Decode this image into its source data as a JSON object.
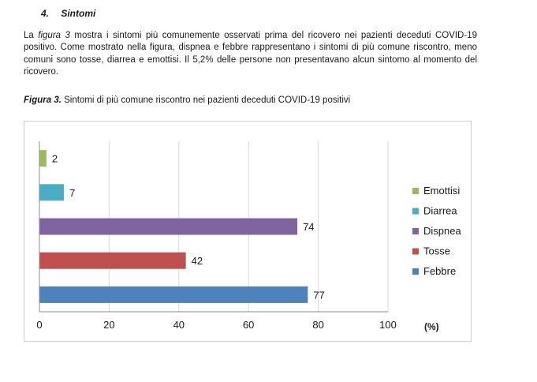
{
  "section": {
    "number": "4.",
    "title": "Sintomi"
  },
  "paragraph": {
    "part1": "La ",
    "figure_ref": "figura 3",
    "part2": " mostra i sintomi più comunemente osservati prima del ricovero nei pazienti deceduti COVID-19 positivo. Come mostrato nella figura, dispnea e febbre rappresentano i sintomi di più comune riscontro, meno comuni sono tosse, diarrea e emottisi. Il 5,2% delle persone non presentavano alcun sintomo al momento del ricovero."
  },
  "caption": {
    "label": "Figura 3.",
    "text": " Sintomi di più comune riscontro nei pazienti deceduti COVID-19 positivi"
  },
  "chart_data": {
    "type": "bar",
    "orientation": "horizontal",
    "categories": [
      "Emottisi",
      "Diarrea",
      "Dispnea",
      "Tosse",
      "Febbre"
    ],
    "values": [
      2,
      7,
      74,
      42,
      77
    ],
    "colors": [
      "#9bbb59",
      "#4bacc6",
      "#8064a2",
      "#c0504d",
      "#4f81bd"
    ],
    "legend": [
      "Emottisi",
      "Diarrea",
      "Dispnea",
      "Tosse",
      "Febbre"
    ],
    "legend_position": "right",
    "xlim": [
      0,
      100
    ],
    "xticks": [
      0,
      20,
      40,
      60,
      80,
      100
    ],
    "xlabel": "(%)",
    "grid": true,
    "gridline_color": "#d9d9d9",
    "axis_color": "#8c8c8c"
  }
}
